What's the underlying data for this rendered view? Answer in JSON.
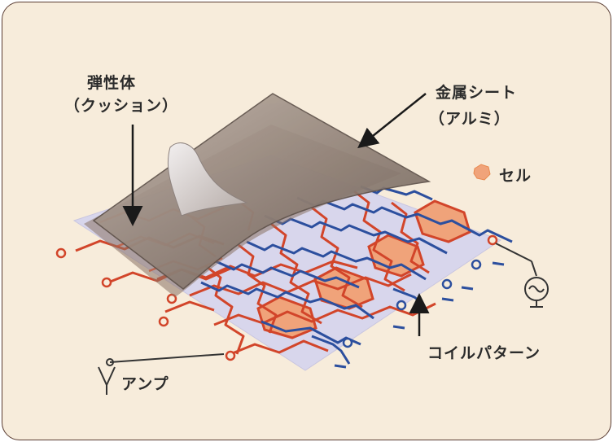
{
  "labels": {
    "elastic_body": "弾性体",
    "elastic_body_sub": "（クッション）",
    "metal_sheet": "金属シート",
    "metal_sheet_sub": "（アルミ）",
    "cell": "セル",
    "coil_pattern": "コイルパターン",
    "amp": "アンプ"
  },
  "colors": {
    "background": "#f7ecdb",
    "base_sheet": "#d8d6ec",
    "coil_red": "#d2452a",
    "coil_blue": "#2c4f9e",
    "cell_fill": "#f0a37a",
    "metal_sheet": "#8c7d74",
    "border": "#5a3c32"
  },
  "icons": [
    "cell-marker-icon",
    "ac-source-icon",
    "ground-icon",
    "antenna-icon",
    "arrow-icon"
  ]
}
